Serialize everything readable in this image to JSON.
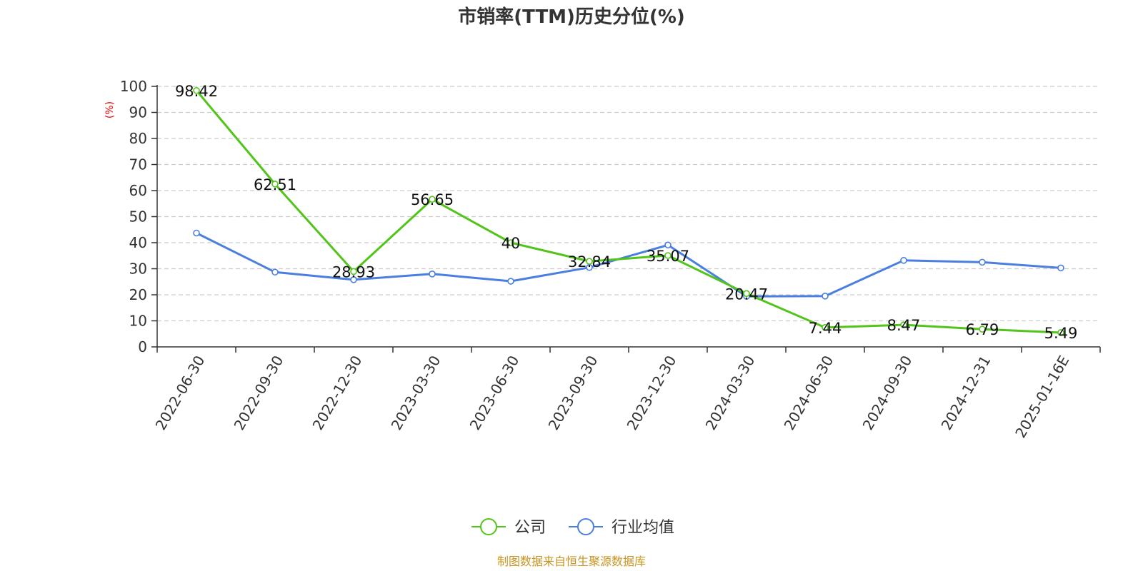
{
  "chart_data": {
    "type": "line",
    "title": "市销率(TTM)历史分位(%)",
    "ylabel": "(%)",
    "ylim": [
      0,
      100
    ],
    "yticks": [
      0,
      10,
      20,
      30,
      40,
      50,
      60,
      70,
      80,
      90,
      100
    ],
    "grid": true,
    "legend_position": "bottom",
    "categories": [
      "2022-06-30",
      "2022-09-30",
      "2022-12-30",
      "2023-03-30",
      "2023-06-30",
      "2023-09-30",
      "2023-12-30",
      "2024-03-30",
      "2024-06-30",
      "2024-09-30",
      "2024-12-31",
      "2025-01-16E"
    ],
    "series": [
      {
        "name": "公司",
        "color": "#52c41a",
        "values": [
          98.42,
          62.51,
          28.93,
          56.65,
          40,
          32.84,
          35.07,
          20.47,
          7.44,
          8.47,
          6.79,
          5.49
        ],
        "labels": [
          "98.42",
          "62.51",
          "28.93",
          "56.65",
          "40",
          "32.84",
          "35.07",
          "20.47",
          "7.44",
          "8.47",
          "6.79",
          "5.49"
        ]
      },
      {
        "name": "行业均值",
        "color": "#4a7fe0",
        "values": [
          43.7,
          28.7,
          25.8,
          28.0,
          25.2,
          30.5,
          39.1,
          19.4,
          19.5,
          33.2,
          32.5,
          30.3
        ]
      }
    ]
  },
  "source_note": "制图数据来自恒生聚源数据库"
}
